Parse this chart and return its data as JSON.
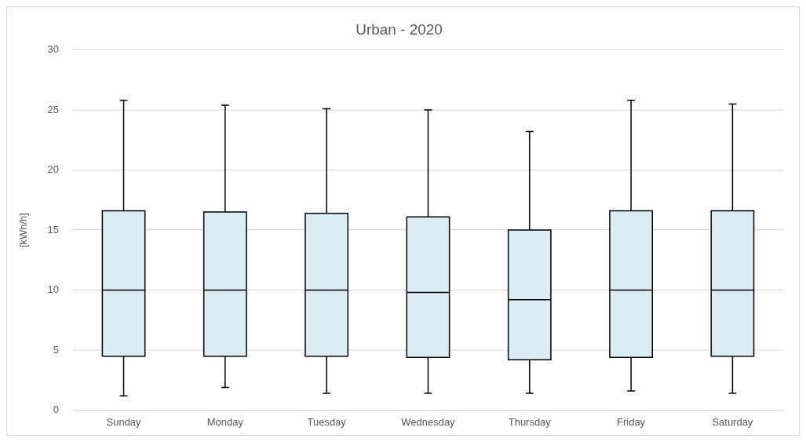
{
  "chart_data": {
    "type": "box",
    "title": "Urban - 2020",
    "ylabel": "[kWh/h]",
    "categories": [
      "Sunday",
      "Monday",
      "Tuesday",
      "Wednesday",
      "Thursday",
      "Friday",
      "Saturday"
    ],
    "color": "#daedf3",
    "boxes": [
      {
        "low": 1.2,
        "q1": 4.5,
        "median": 10,
        "q3": 16.6,
        "high": 25.8
      },
      {
        "low": 1.9,
        "q1": 4.5,
        "median": 10,
        "q3": 16.5,
        "high": 25.4
      },
      {
        "low": 1.4,
        "q1": 4.5,
        "median": 10,
        "q3": 16.4,
        "high": 25.1
      },
      {
        "low": 1.4,
        "q1": 4.4,
        "median": 9.8,
        "q3": 16.1,
        "high": 25
      },
      {
        "low": 1.4,
        "q1": 4.2,
        "median": 9.2,
        "q3": 15,
        "high": 23.2
      },
      {
        "low": 1.6,
        "q1": 4.4,
        "median": 10,
        "q3": 16.6,
        "high": 25.8
      },
      {
        "low": 1.4,
        "q1": 4.5,
        "median": 10,
        "q3": 16.6,
        "high": 25.5
      }
    ],
    "ylim": [
      0,
      30
    ],
    "yticks": [
      0,
      5,
      10,
      15,
      20,
      25,
      30
    ],
    "grid": "y"
  }
}
